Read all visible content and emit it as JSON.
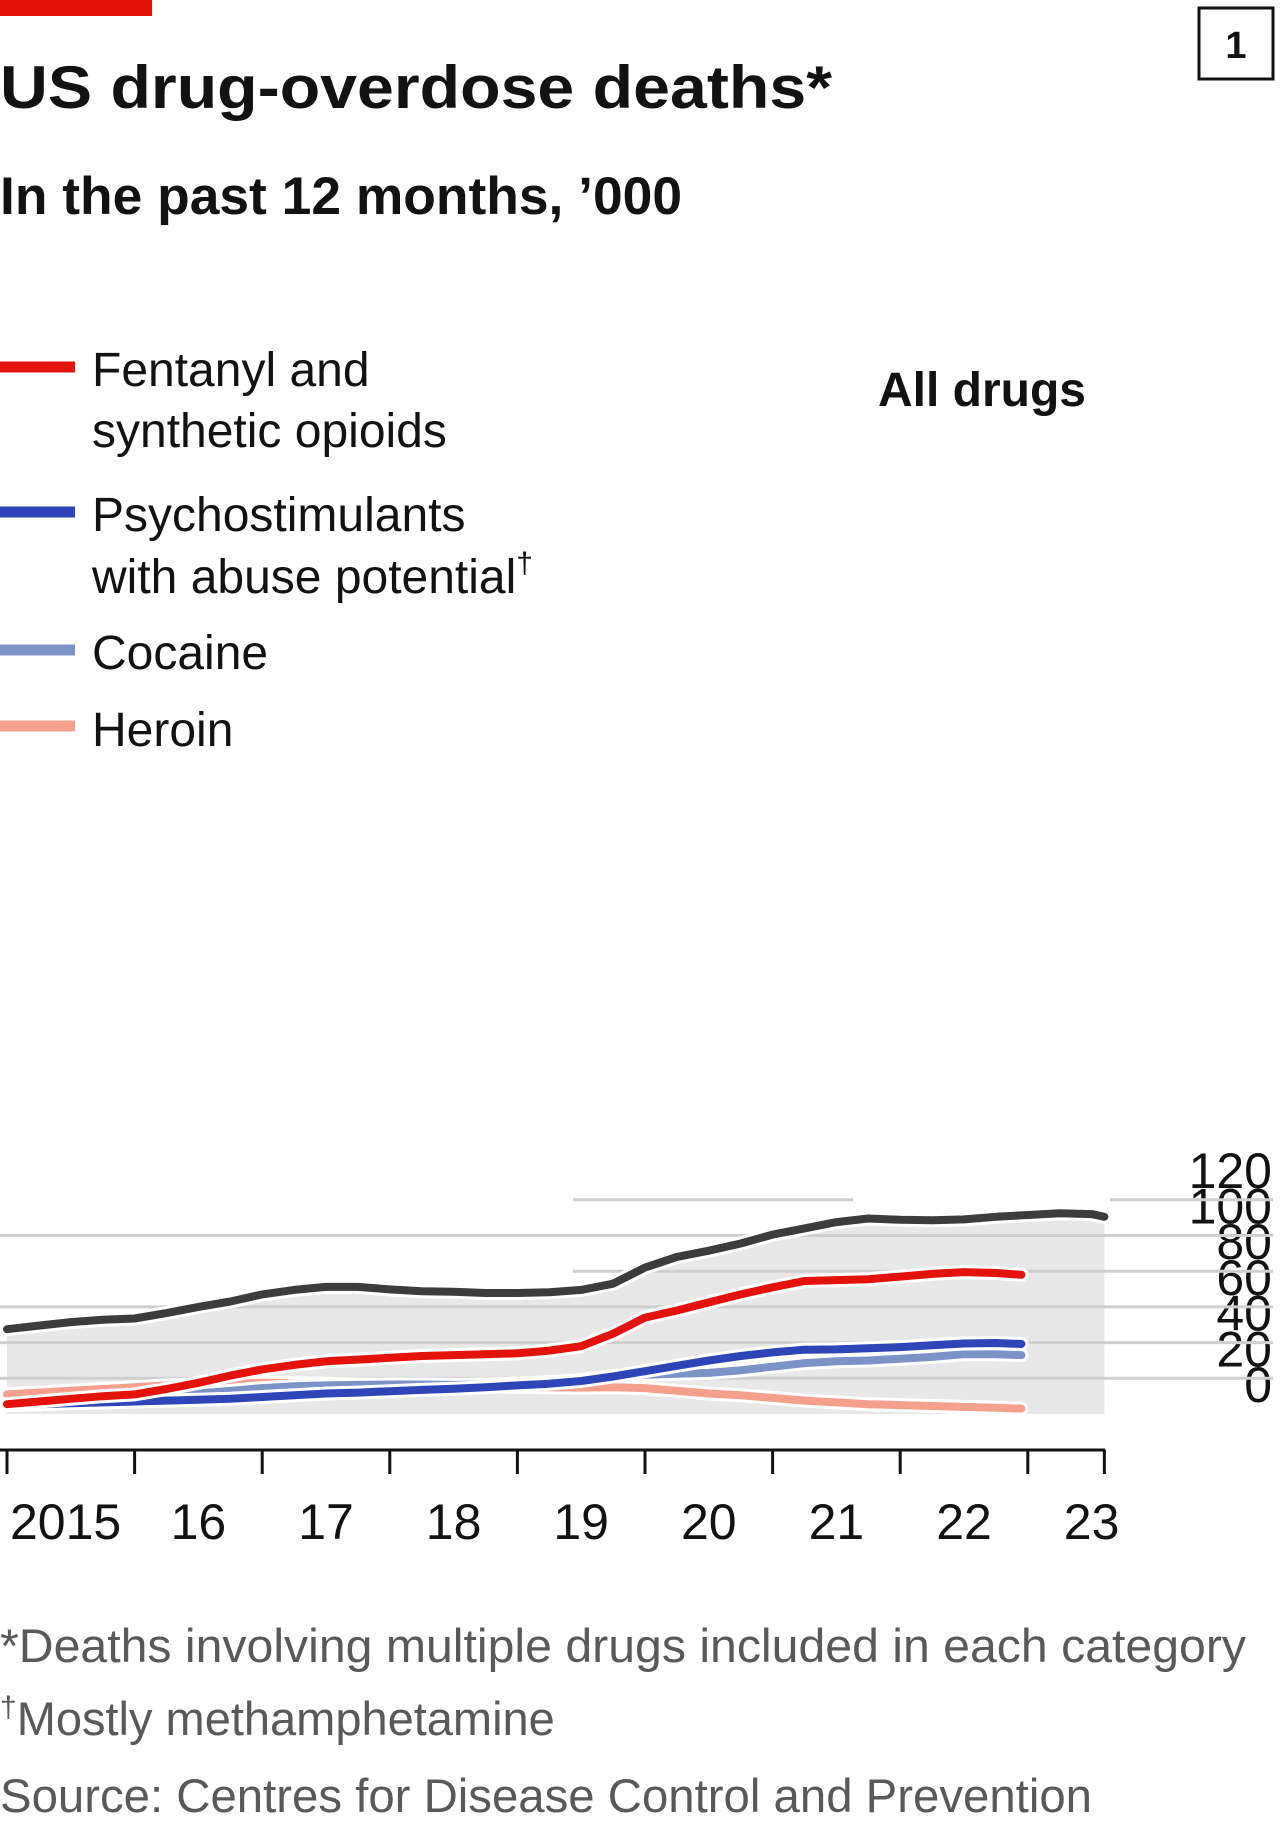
{
  "badge": "1",
  "title": "US drug-overdose deaths*",
  "subtitle": "In the past 12 months, ’000",
  "chart_data": {
    "type": "line",
    "ylim": [
      0,
      120
    ],
    "yticks": [
      0,
      20,
      40,
      60,
      80,
      100,
      120
    ],
    "xticks": [
      {
        "x": 2015,
        "label": "2015"
      },
      {
        "x": 2016,
        "label": "16"
      },
      {
        "x": 2017,
        "label": "17"
      },
      {
        "x": 2018,
        "label": "18"
      },
      {
        "x": 2019,
        "label": "19"
      },
      {
        "x": 2020,
        "label": "20"
      },
      {
        "x": 2021,
        "label": "21"
      },
      {
        "x": 2022,
        "label": "22"
      },
      {
        "x": 2023,
        "label": "23"
      }
    ],
    "grid": true,
    "legend_position": "top-left",
    "series": [
      {
        "key": "all",
        "label": "All drugs",
        "color": "#3c3c3c",
        "points": [
          [
            2015.0,
            47.5
          ],
          [
            2015.25,
            49.5
          ],
          [
            2015.5,
            51.5
          ],
          [
            2015.75,
            52.8
          ],
          [
            2016.0,
            53.5
          ],
          [
            2016.25,
            56.5
          ],
          [
            2016.5,
            60
          ],
          [
            2016.75,
            63
          ],
          [
            2017.0,
            67
          ],
          [
            2017.25,
            69.5
          ],
          [
            2017.5,
            71.2
          ],
          [
            2017.75,
            71.2
          ],
          [
            2018.0,
            69.8
          ],
          [
            2018.25,
            68.8
          ],
          [
            2018.5,
            68.5
          ],
          [
            2018.75,
            67.8
          ],
          [
            2019.0,
            67.8
          ],
          [
            2019.25,
            68.2
          ],
          [
            2019.5,
            69.5
          ],
          [
            2019.75,
            73
          ],
          [
            2020.0,
            82
          ],
          [
            2020.25,
            88
          ],
          [
            2020.5,
            91.5
          ],
          [
            2020.75,
            95.5
          ],
          [
            2021.0,
            100.5
          ],
          [
            2021.25,
            104
          ],
          [
            2021.5,
            107.5
          ],
          [
            2021.75,
            109.5
          ],
          [
            2022.0,
            108.8
          ],
          [
            2022.25,
            108.5
          ],
          [
            2022.5,
            109
          ],
          [
            2022.75,
            110.5
          ],
          [
            2023.0,
            111.5
          ],
          [
            2023.25,
            112.5
          ],
          [
            2023.5,
            112
          ],
          [
            2023.6,
            110.5
          ]
        ]
      },
      {
        "key": "fentanyl",
        "label": "Fentanyl and synthetic opioids",
        "color": "#e3120b",
        "points": [
          [
            2015.0,
            5.5
          ],
          [
            2015.25,
            7
          ],
          [
            2015.5,
            8.5
          ],
          [
            2015.75,
            10
          ],
          [
            2016.0,
            11
          ],
          [
            2016.25,
            14
          ],
          [
            2016.5,
            17.5
          ],
          [
            2016.75,
            21.5
          ],
          [
            2017.0,
            25
          ],
          [
            2017.25,
            27.5
          ],
          [
            2017.5,
            29.5
          ],
          [
            2017.75,
            30.5
          ],
          [
            2018.0,
            31.5
          ],
          [
            2018.25,
            32.5
          ],
          [
            2018.5,
            33
          ],
          [
            2018.75,
            33.5
          ],
          [
            2019.0,
            34
          ],
          [
            2019.25,
            35.5
          ],
          [
            2019.5,
            38
          ],
          [
            2019.75,
            45
          ],
          [
            2020.0,
            54
          ],
          [
            2020.25,
            58
          ],
          [
            2020.5,
            62.5
          ],
          [
            2020.75,
            67
          ],
          [
            2021.0,
            71
          ],
          [
            2021.25,
            74.5
          ],
          [
            2021.5,
            75
          ],
          [
            2021.75,
            75.5
          ],
          [
            2022.0,
            77
          ],
          [
            2022.25,
            78.5
          ],
          [
            2022.5,
            79.5
          ],
          [
            2022.75,
            79
          ],
          [
            2022.95,
            78
          ]
        ]
      },
      {
        "key": "psychostimulants",
        "label": "Psychostimulants with abuse potential†",
        "color": "#2e45b8",
        "points": [
          [
            2015.0,
            5
          ],
          [
            2015.25,
            5.5
          ],
          [
            2015.5,
            6
          ],
          [
            2015.75,
            6.5
          ],
          [
            2016.0,
            7
          ],
          [
            2016.25,
            7.5
          ],
          [
            2016.5,
            8
          ],
          [
            2016.75,
            8.5
          ],
          [
            2017.0,
            9.5
          ],
          [
            2017.25,
            10.5
          ],
          [
            2017.5,
            11.5
          ],
          [
            2017.75,
            12
          ],
          [
            2018.0,
            12.8
          ],
          [
            2018.25,
            13.5
          ],
          [
            2018.5,
            14.2
          ],
          [
            2018.75,
            15
          ],
          [
            2019.0,
            16
          ],
          [
            2019.25,
            17
          ],
          [
            2019.5,
            18.5
          ],
          [
            2019.75,
            21
          ],
          [
            2020.0,
            24
          ],
          [
            2020.25,
            27
          ],
          [
            2020.5,
            30
          ],
          [
            2020.75,
            32.5
          ],
          [
            2021.0,
            34.5
          ],
          [
            2021.25,
            36
          ],
          [
            2021.5,
            36.2
          ],
          [
            2021.75,
            36.8
          ],
          [
            2022.0,
            37.5
          ],
          [
            2022.25,
            38.5
          ],
          [
            2022.5,
            39.5
          ],
          [
            2022.75,
            39.8
          ],
          [
            2022.95,
            39.2
          ]
        ]
      },
      {
        "key": "cocaine",
        "label": "Cocaine",
        "color": "#7c93c8",
        "points": [
          [
            2015.0,
            5.5
          ],
          [
            2015.25,
            6.3
          ],
          [
            2015.5,
            7
          ],
          [
            2015.75,
            7.7
          ],
          [
            2016.0,
            8.5
          ],
          [
            2016.25,
            10
          ],
          [
            2016.5,
            11.5
          ],
          [
            2016.75,
            13
          ],
          [
            2017.0,
            14.5
          ],
          [
            2017.25,
            15.5
          ],
          [
            2017.5,
            16
          ],
          [
            2017.75,
            16.3
          ],
          [
            2018.0,
            16.5
          ],
          [
            2018.25,
            16.5
          ],
          [
            2018.5,
            16.3
          ],
          [
            2018.75,
            16.5
          ],
          [
            2019.0,
            17
          ],
          [
            2019.25,
            17.8
          ],
          [
            2019.5,
            19
          ],
          [
            2019.75,
            21.3
          ],
          [
            2020.0,
            22
          ],
          [
            2020.25,
            22.5
          ],
          [
            2020.5,
            23
          ],
          [
            2020.75,
            24.5
          ],
          [
            2021.0,
            26.5
          ],
          [
            2021.25,
            28.5
          ],
          [
            2021.5,
            29.5
          ],
          [
            2021.75,
            30
          ],
          [
            2022.0,
            31
          ],
          [
            2022.25,
            32
          ],
          [
            2022.5,
            33.5
          ],
          [
            2022.75,
            33.5
          ],
          [
            2022.95,
            33
          ]
        ]
      },
      {
        "key": "heroin",
        "label": "Heroin",
        "color": "#f5a08c",
        "points": [
          [
            2015.0,
            11
          ],
          [
            2015.25,
            12
          ],
          [
            2015.5,
            13
          ],
          [
            2015.75,
            14
          ],
          [
            2016.0,
            15
          ],
          [
            2016.25,
            16
          ],
          [
            2016.5,
            16.5
          ],
          [
            2016.75,
            17
          ],
          [
            2017.0,
            17.5
          ],
          [
            2017.25,
            17.3
          ],
          [
            2017.5,
            17
          ],
          [
            2017.75,
            16.5
          ],
          [
            2018.0,
            16.3
          ],
          [
            2018.25,
            16.2
          ],
          [
            2018.5,
            16
          ],
          [
            2018.75,
            15.5
          ],
          [
            2019.0,
            15.2
          ],
          [
            2019.25,
            15
          ],
          [
            2019.5,
            14.8
          ],
          [
            2019.75,
            15
          ],
          [
            2020.0,
            14.5
          ],
          [
            2020.25,
            13
          ],
          [
            2020.5,
            11.5
          ],
          [
            2020.75,
            10.5
          ],
          [
            2021.0,
            9
          ],
          [
            2021.25,
            7.5
          ],
          [
            2021.5,
            6.5
          ],
          [
            2021.75,
            5.5
          ],
          [
            2022.0,
            5
          ],
          [
            2022.25,
            4.5
          ],
          [
            2022.5,
            4
          ],
          [
            2022.75,
            3.5
          ],
          [
            2022.95,
            3
          ]
        ]
      }
    ]
  },
  "annotation": "All drugs",
  "legend": [
    {
      "lines": [
        "Fentanyl and",
        "synthetic opioids"
      ],
      "dagger": "",
      "color": "#e3120b"
    },
    {
      "lines": [
        "Psychostimulants",
        "with abuse potential"
      ],
      "dagger": "†",
      "color": "#2e45b8"
    },
    {
      "lines": [
        "Cocaine"
      ],
      "dagger": "",
      "color": "#7c93c8"
    },
    {
      "lines": [
        "Heroin"
      ],
      "dagger": "",
      "color": "#f5a08c"
    }
  ],
  "footnotes": {
    "note1": "*Deaths involving multiple drugs included in each category",
    "note2_mark": "†",
    "note2": "Mostly methamphetamine",
    "source": "Source: Centres for Disease Control and Prevention"
  },
  "colors": {
    "brand_red": "#e3120b",
    "area_fill": "#e9e8e8",
    "gridline": "#cfcfcf",
    "text": "#121212",
    "footnote": "#595959"
  }
}
